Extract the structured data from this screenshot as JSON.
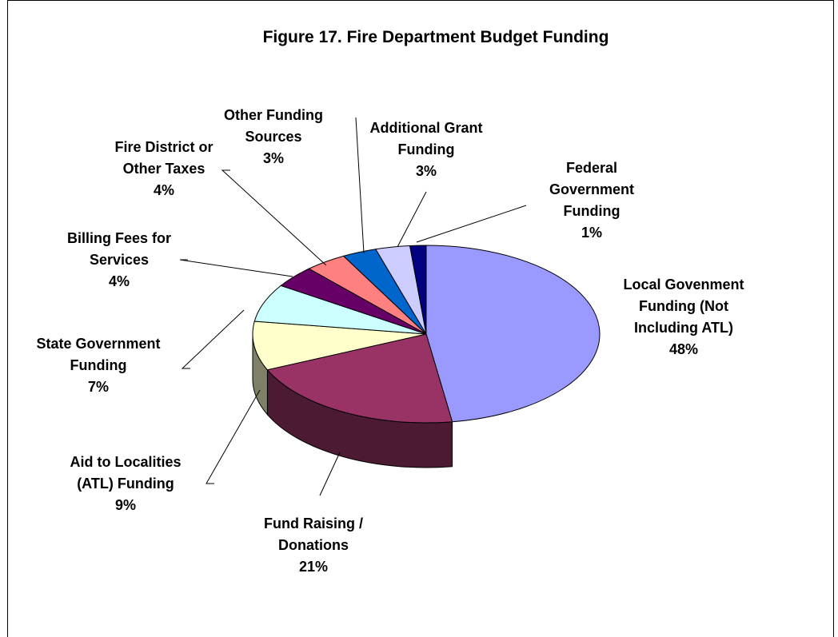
{
  "chart_data": {
    "type": "pie",
    "title": "Figure 17. Fire Department Budget Funding",
    "slices": [
      {
        "name": "Local Govenment Funding (Not Including ATL)",
        "lines": [
          "Local Govenment",
          "Funding (Not",
          "Including ATL)"
        ],
        "pct_label": "48%",
        "value": 47.6,
        "color": "#9999ff",
        "side": "#4d4d80"
      },
      {
        "name": "Fund Raising / Donations",
        "lines": [
          "Fund Raising /",
          "Donations"
        ],
        "pct_label": "21%",
        "value": 20.8,
        "color": "#993366",
        "side": "#4d1a33"
      },
      {
        "name": "Aid to Localities (ATL) Funding",
        "lines": [
          "Aid to Localities",
          "(ATL) Funding"
        ],
        "pct_label": "9%",
        "value": 8.9,
        "color": "#ffffcc",
        "side": "#808066"
      },
      {
        "name": "State Government Funding",
        "lines": [
          "State Government",
          "Funding"
        ],
        "pct_label": "7%",
        "value": 6.9,
        "color": "#ccffff",
        "side": "#668080"
      },
      {
        "name": "Billing Fees for Services",
        "lines": [
          "Billing Fees for",
          "Services"
        ],
        "pct_label": "4%",
        "value": 4.0,
        "color": "#660066",
        "side": "#330033"
      },
      {
        "name": "Fire District or Other Taxes",
        "lines": [
          "Fire District or",
          "Other Taxes"
        ],
        "pct_label": "4%",
        "value": 3.9,
        "color": "#ff8080",
        "side": "#804040"
      },
      {
        "name": "Other Funding Sources",
        "lines": [
          "Other Funding",
          "Sources"
        ],
        "pct_label": "3%",
        "value": 3.2,
        "color": "#0066cc",
        "side": "#003366"
      },
      {
        "name": "Additional Grant Funding",
        "lines": [
          "Additional Grant",
          "Funding"
        ],
        "pct_label": "3%",
        "value": 3.2,
        "color": "#ccccff",
        "side": "#666680"
      },
      {
        "name": "Federal Government Funding",
        "lines": [
          "Federal",
          "Government",
          "Funding"
        ],
        "pct_label": "1%",
        "value": 1.5,
        "color": "#000080",
        "side": "#000040"
      }
    ]
  }
}
